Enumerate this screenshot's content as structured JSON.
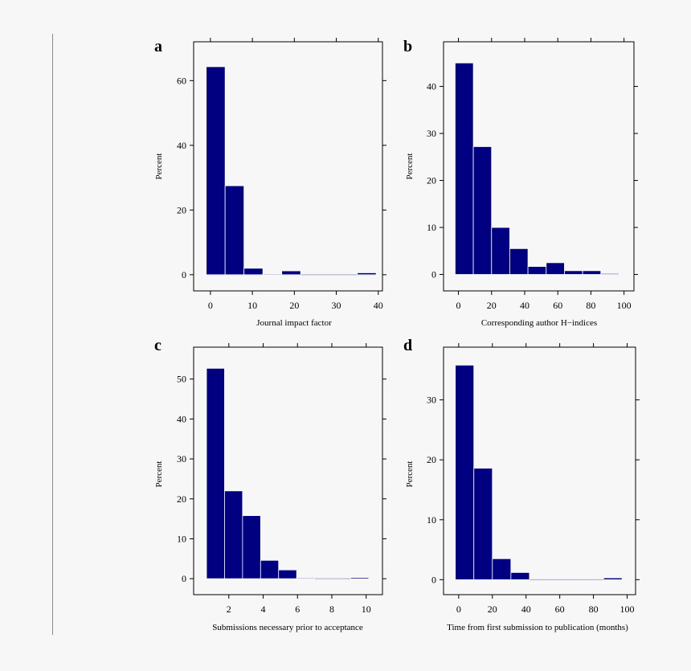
{
  "colors": {
    "bar_fill": "#000080",
    "bar_edge": "#ffffff",
    "axis": "#000000",
    "background": "#f7f7f7"
  },
  "chart_data": [
    {
      "type": "bar",
      "panel_label": "a",
      "xlabel": "Journal impact factor",
      "ylabel": "Percent",
      "xlim": [
        -4,
        41
      ],
      "ylim": [
        -5,
        72
      ],
      "xticks": [
        0,
        10,
        20,
        30,
        40
      ],
      "yticks": [
        0,
        20,
        40,
        60
      ],
      "bin_edges": [
        -1,
        3.5,
        8,
        12.5,
        17,
        21.5,
        26,
        30.5,
        35,
        39.5
      ],
      "values": [
        64.3,
        27.5,
        2.0,
        0.2,
        1.2,
        0,
        0,
        0,
        0.6
      ]
    },
    {
      "type": "bar",
      "panel_label": "b",
      "xlabel": "Corresponding author H−indices",
      "ylabel": "Percent",
      "xlim": [
        -9,
        106
      ],
      "ylim": [
        -3.5,
        49.5
      ],
      "xticks": [
        0,
        20,
        40,
        60,
        80,
        100
      ],
      "yticks": [
        0,
        10,
        20,
        30,
        40
      ],
      "bin_edges": [
        -2,
        9,
        20,
        31,
        42,
        53,
        64,
        75,
        86,
        97
      ],
      "values": [
        45.0,
        27.2,
        10.0,
        5.5,
        1.7,
        2.5,
        0.8,
        0.8,
        0.2
      ]
    },
    {
      "type": "bar",
      "panel_label": "c",
      "xlabel": "Submissions necessary prior to acceptance",
      "ylabel": "Percent",
      "xlim": [
        -0.05,
        10.95
      ],
      "ylim": [
        -4,
        58
      ],
      "xticks": [
        2,
        4,
        6,
        8,
        10
      ],
      "yticks": [
        0,
        10,
        20,
        30,
        40,
        50
      ],
      "bin_edges": [
        0.7,
        1.75,
        2.8,
        3.85,
        4.9,
        5.95,
        7,
        8.05,
        9.1,
        10.15
      ],
      "values": [
        52.7,
        22.0,
        15.8,
        4.6,
        2.2,
        0.2,
        0,
        0,
        0.3
      ]
    },
    {
      "type": "bar",
      "panel_label": "d",
      "xlabel": "Time from first submission to publication (months)",
      "ylabel": "Percent",
      "xlim": [
        -9,
        105
      ],
      "ylim": [
        -2.5,
        38.8
      ],
      "xticks": [
        0,
        20,
        40,
        60,
        80,
        100
      ],
      "yticks": [
        0,
        10,
        20,
        30
      ],
      "bin_edges": [
        -2,
        9,
        20,
        31,
        42,
        53,
        64,
        75,
        86,
        97
      ],
      "values": [
        35.8,
        18.6,
        3.5,
        1.2,
        0,
        0,
        0,
        0,
        0.3
      ]
    }
  ]
}
